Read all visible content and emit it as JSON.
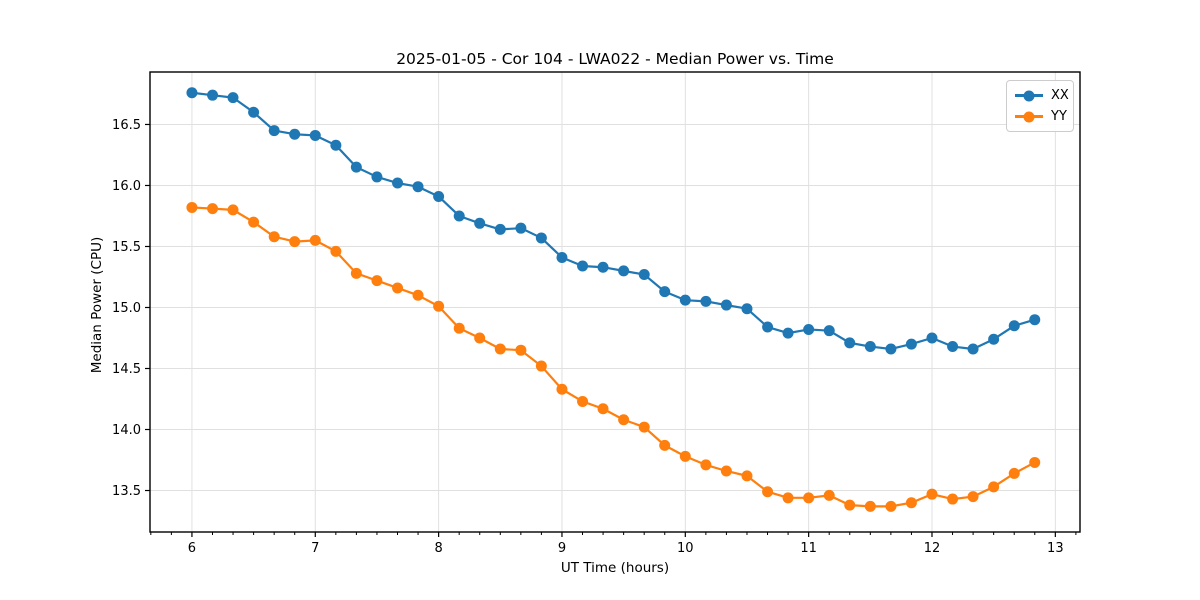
{
  "chart_data": {
    "type": "line",
    "title": "2025-01-05 - Cor 104 - LWA022 - Median Power vs. Time",
    "xlabel": "UT Time (hours)",
    "ylabel": "Median Power (CPU)",
    "xlim": [
      5.66,
      13.2
    ],
    "ylim": [
      13.16,
      16.93
    ],
    "x_major_ticks": [
      6,
      7,
      8,
      9,
      10,
      11,
      12,
      13
    ],
    "x_minor_tick_step": 0.16667,
    "y_major_ticks": [
      13.5,
      14.0,
      14.5,
      15.0,
      15.5,
      16.0,
      16.5
    ],
    "grid": true,
    "legend_position": "upper right",
    "x": [
      6,
      6.167,
      6.333,
      6.5,
      6.667,
      6.833,
      7,
      7.167,
      7.333,
      7.5,
      7.667,
      7.833,
      8,
      8.167,
      8.333,
      8.5,
      8.667,
      8.833,
      9,
      9.167,
      9.333,
      9.5,
      9.667,
      9.833,
      10,
      10.167,
      10.333,
      10.5,
      10.667,
      10.833,
      11,
      11.167,
      11.333,
      11.5,
      11.667,
      11.833,
      12,
      12.167,
      12.333,
      12.5,
      12.667,
      12.833
    ],
    "series": [
      {
        "name": "XX",
        "color": "#1f77b4",
        "values": [
          16.76,
          16.74,
          16.72,
          16.6,
          16.45,
          16.42,
          16.41,
          16.33,
          16.15,
          16.07,
          16.02,
          15.99,
          15.91,
          15.75,
          15.69,
          15.64,
          15.65,
          15.57,
          15.41,
          15.34,
          15.33,
          15.3,
          15.27,
          15.13,
          15.06,
          15.05,
          15.02,
          14.99,
          14.84,
          14.79,
          14.82,
          14.81,
          14.71,
          14.68,
          14.66,
          14.7,
          14.75,
          14.68,
          14.66,
          14.74,
          14.85,
          14.9
        ]
      },
      {
        "name": "YY",
        "color": "#ff7f0e",
        "values": [
          15.82,
          15.81,
          15.8,
          15.7,
          15.58,
          15.54,
          15.55,
          15.46,
          15.28,
          15.22,
          15.16,
          15.1,
          15.01,
          14.83,
          14.75,
          14.66,
          14.65,
          14.52,
          14.33,
          14.23,
          14.17,
          14.08,
          14.02,
          13.87,
          13.78,
          13.71,
          13.66,
          13.62,
          13.49,
          13.44,
          13.44,
          13.46,
          13.38,
          13.37,
          13.37,
          13.4,
          13.47,
          13.43,
          13.45,
          13.53,
          13.64,
          13.73
        ]
      }
    ],
    "style": {
      "grid_color": "#e0e0e0",
      "spine_color": "#000000",
      "tick_color": "#000000",
      "background": "#ffffff"
    }
  }
}
